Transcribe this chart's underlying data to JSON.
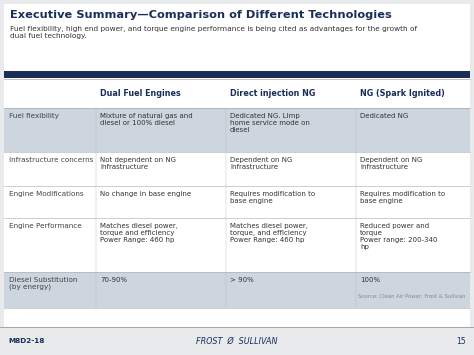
{
  "title": "Executive Summary—Comparison of Different Technologies",
  "subtitle": "Fuel flexibility, high end power, and torque engine performance is being cited as advantages for the growth of\ndual fuel technology.",
  "columns": [
    "",
    "Dual Fuel Engines",
    "Direct injection NG",
    "NG (Spark Ignited)"
  ],
  "rows": [
    {
      "label": "Fuel flexibility",
      "values": [
        "Mixture of natural gas and\ndiesel or 100% diesel",
        "Dedicated NG. Limp\nhome service mode on\ndiesel",
        "Dedicated NG"
      ],
      "shaded": true
    },
    {
      "label": "Infrastructure concerns",
      "values": [
        "Not dependent on NG\nInfrastructure",
        "Dependent on NG\ninfrastructure",
        "Dependent on NG\ninfrastructure"
      ],
      "shaded": false
    },
    {
      "label": "Engine Modifications",
      "values": [
        "No change in base engine",
        "Requires modification to\nbase engine",
        "Requires modification to\nbase engine"
      ],
      "shaded": false
    },
    {
      "label": "Engine Performance",
      "values": [
        "Matches diesel power,\ntorque and efficiency\nPower Range: 460 hp",
        "Matches diesel power,\ntorque, and efficiency\nPower Range: 460 hp",
        "Reduced power and\ntorque\nPower range: 200-340\nhp"
      ],
      "shaded": false
    },
    {
      "label": "Diesel Substitution\n(by energy)",
      "values": [
        "70-90%",
        "> 90%",
        "100%"
      ],
      "shaded": true
    }
  ],
  "source_text": "Source: Clean Air Power; Frost & Sullivan",
  "footer_left": "M8D2-18",
  "footer_center": "FROST  Ø  SULLIVAN",
  "footer_page": "15",
  "bg_color": "#e8eaec",
  "white_bg": "#ffffff",
  "title_color": "#1a2e5a",
  "subtitle_color": "#333333",
  "col_header_color": "#1a2e5a",
  "row_label_color": "#444444",
  "cell_text_color": "#333333",
  "shaded_row_color": "#cdd5de",
  "unshaded_row_color": "#ffffff",
  "dark_bar_color": "#1a2e5a",
  "footer_text_color": "#1a2e5a"
}
